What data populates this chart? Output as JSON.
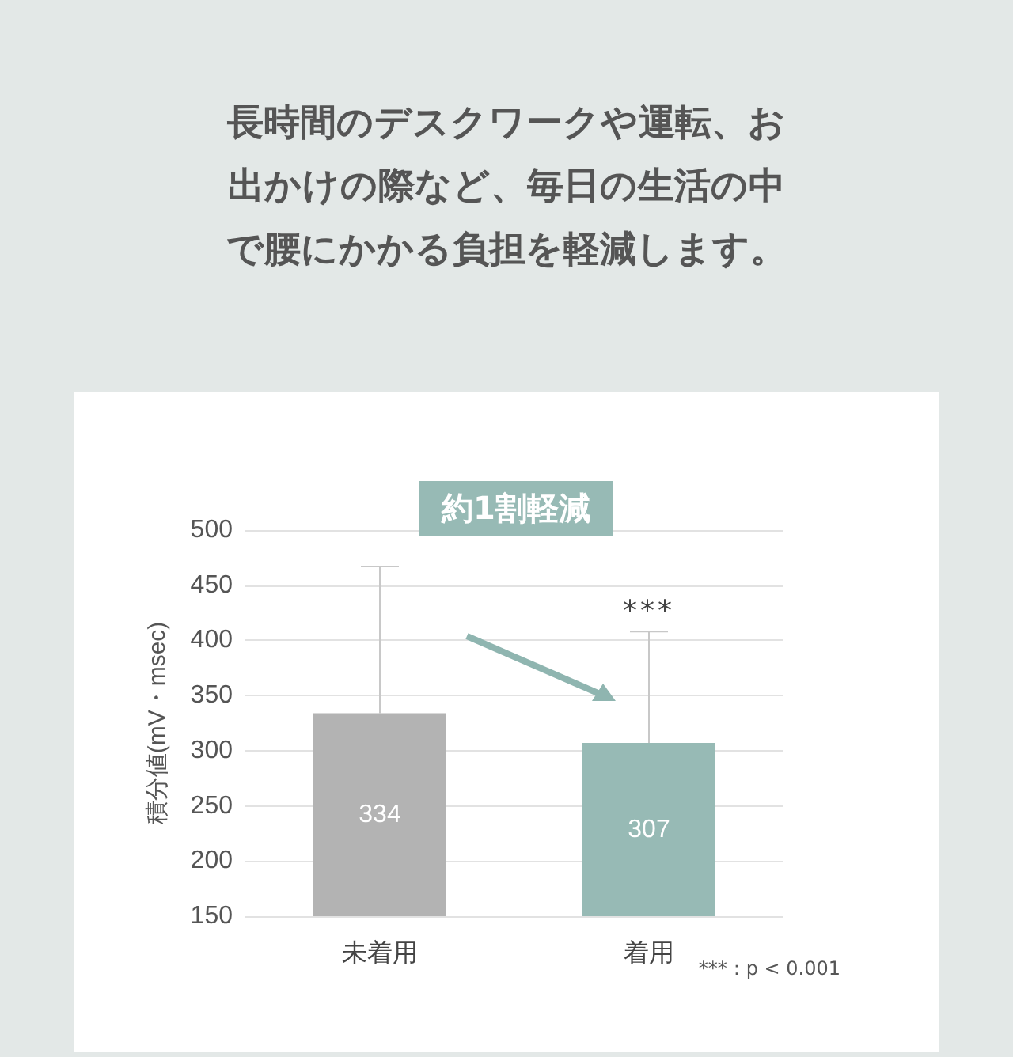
{
  "chart_data": {
    "type": "bar",
    "title": "長時間のデスクワークや運転、お出かけの際など、毎日の生活の中で腰にかかる負担を軽減します。",
    "ylabel": "積分値(mV・msec)",
    "categories": [
      "未着用",
      "着用"
    ],
    "values": [
      334,
      307
    ],
    "colors": [
      "#b3b3b3",
      "#97bab5"
    ],
    "errors": [
      [
        334,
        467
      ],
      [
        307,
        408
      ]
    ],
    "data_labels": true,
    "ylim": [
      150,
      500
    ],
    "yticks": [
      150,
      200,
      250,
      300,
      350,
      400,
      450,
      500
    ],
    "grid": "y",
    "annotations": [
      "約1割軽減",
      {
        "text": "***",
        "x": "着用",
        "y": 408
      },
      "***：p < 0.001"
    ]
  }
}
